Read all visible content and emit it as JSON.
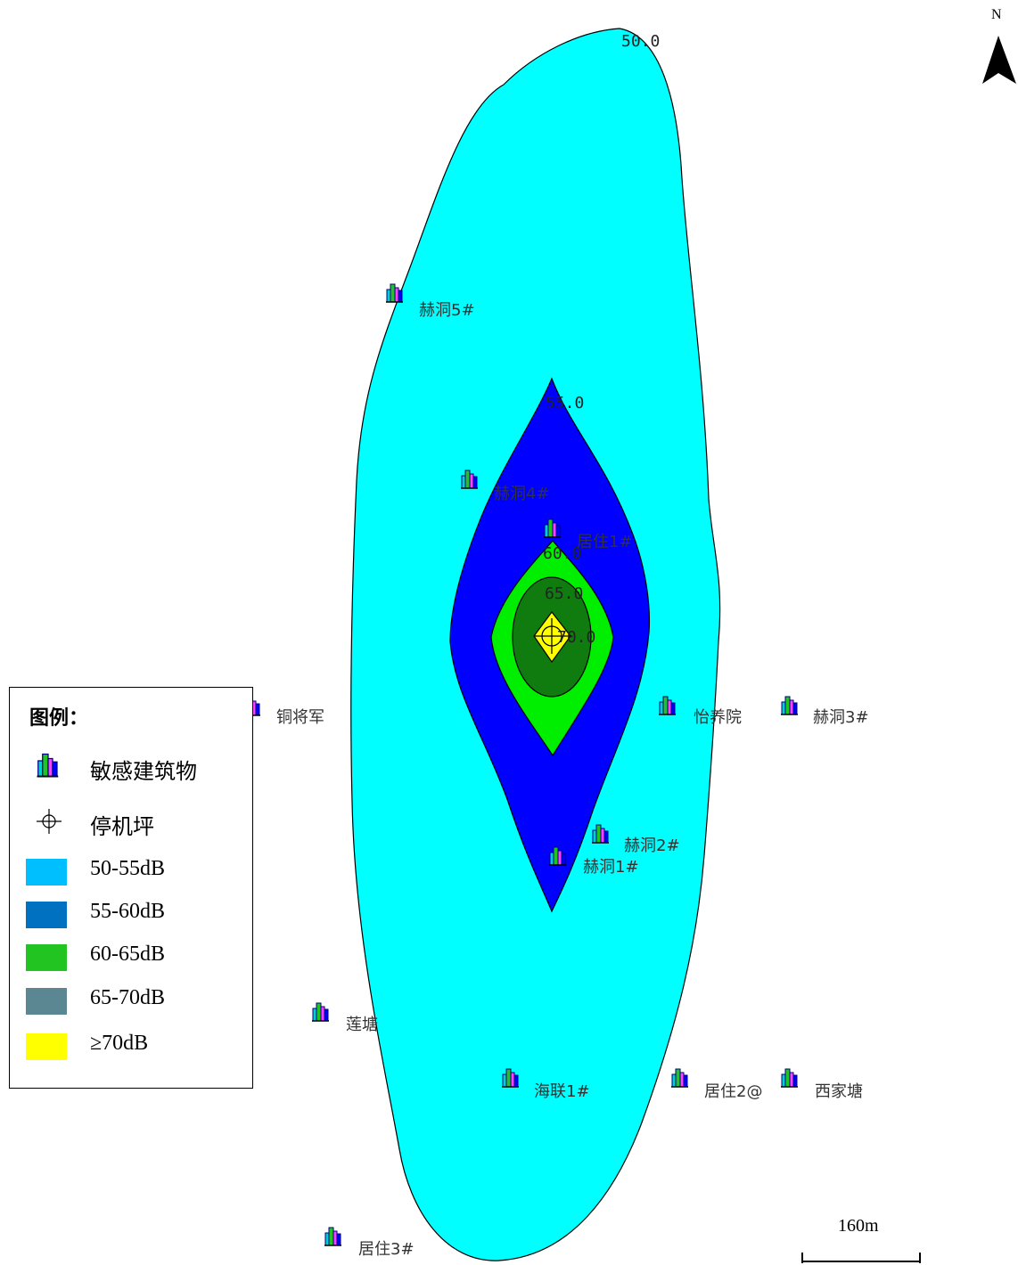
{
  "north_label": "N",
  "scale_label": "160m",
  "contour_labels": [
    {
      "id": "c50",
      "text": "50.0"
    },
    {
      "id": "c55",
      "text": "55.0"
    },
    {
      "id": "c60",
      "text": "60.0"
    },
    {
      "id": "c65",
      "text": "65.0"
    },
    {
      "id": "c70",
      "text": "70.0"
    }
  ],
  "buildings": [
    {
      "id": "hedong5",
      "label": "赫洞5#"
    },
    {
      "id": "hedong4",
      "label": "赫洞4#"
    },
    {
      "id": "juzhu1",
      "label": "居住1#"
    },
    {
      "id": "tongjiangjun",
      "label": "铜将军"
    },
    {
      "id": "yiyangyuan",
      "label": "怡养院"
    },
    {
      "id": "hedong3",
      "label": "赫洞3#"
    },
    {
      "id": "hedong2",
      "label": "赫洞2#"
    },
    {
      "id": "hedong1",
      "label": "赫洞1#"
    },
    {
      "id": "liantang",
      "label": "莲塘"
    },
    {
      "id": "hailian1",
      "label": "海联1#"
    },
    {
      "id": "juzhu2",
      "label": "居住2@"
    },
    {
      "id": "xijiatang",
      "label": "西家塘"
    },
    {
      "id": "juzhu3",
      "label": "居住3#"
    }
  ],
  "legend": {
    "title": "图例：",
    "items": [
      {
        "label": "敏感建筑物",
        "icon": "building-icon"
      },
      {
        "label": "停机坪",
        "icon": "helipad-icon"
      },
      {
        "label": "50-55dB",
        "color": "#00bfff"
      },
      {
        "label": "55-60dB",
        "color": "#0070c0"
      },
      {
        "label": "60-65dB",
        "color": "#22c422"
      },
      {
        "label": "65-70dB",
        "color": "#5b8793"
      },
      {
        "label": "≥70dB",
        "color": "#ffff00"
      }
    ]
  },
  "zone_colors": {
    "z50": "#00ffff",
    "z55": "#0000ff",
    "z60": "#00ee00",
    "z65": "#107c10",
    "z70": "#ffff00"
  }
}
